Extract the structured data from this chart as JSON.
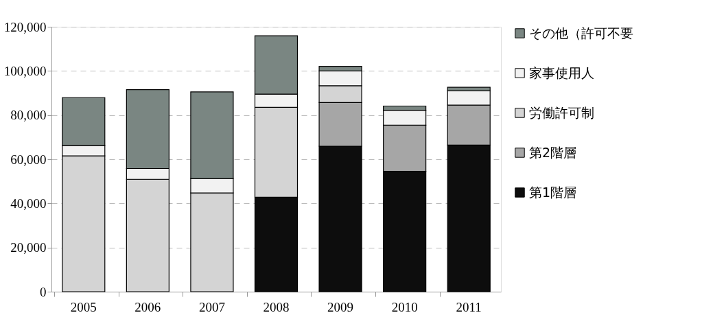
{
  "chart_data": {
    "type": "bar",
    "stacked": true,
    "categories": [
      "2005",
      "2006",
      "2007",
      "2008",
      "2009",
      "2010",
      "2011"
    ],
    "series": [
      {
        "name": "第1階層",
        "color": "#0d0d0d",
        "values": [
          null,
          null,
          null,
          42800,
          65900,
          54500,
          66400
        ]
      },
      {
        "name": "第2階層",
        "color": "#a6a6a6",
        "values": [
          null,
          null,
          null,
          null,
          19800,
          20900,
          18100
        ]
      },
      {
        "name": "労働許可制",
        "color": "#d4d4d4",
        "values": [
          61500,
          50900,
          44700,
          40700,
          7600,
          null,
          null
        ]
      },
      {
        "name": "家事使用人",
        "color": "#f2f2f2",
        "values": [
          4700,
          4900,
          6500,
          6000,
          6700,
          6800,
          6500
        ]
      },
      {
        "name": "その他（許可不要",
        "color": "#7a8682",
        "values": [
          21700,
          35700,
          39300,
          26400,
          2100,
          1900,
          1600
        ]
      }
    ],
    "ylim": [
      0,
      120000
    ],
    "yticks": [
      {
        "value": 0,
        "label": "0"
      },
      {
        "value": 20000,
        "label": "20,000"
      },
      {
        "value": 40000,
        "label": "40,000"
      },
      {
        "value": 60000,
        "label": "60,000"
      },
      {
        "value": 80000,
        "label": "80,000"
      },
      {
        "value": 100000,
        "label": "100,000"
      },
      {
        "value": 120000,
        "label": "120,000"
      }
    ],
    "grid": "y",
    "legend": "right"
  }
}
